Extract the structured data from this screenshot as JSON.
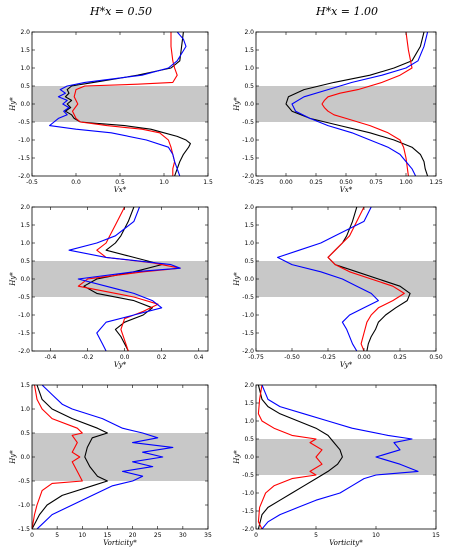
{
  "column_titles": [
    "H*x = 0.50",
    "H*x = 1.00"
  ],
  "colors": {
    "black": "#000000",
    "red": "#ff0000",
    "blue": "#0000ff",
    "band": "#c8c8c8"
  },
  "chart_data": [
    {
      "type": "line",
      "panel": "row1-col1",
      "xlabel": "Vx*",
      "ylabel": "Hy*",
      "xlim": [
        -0.5,
        1.5
      ],
      "ylim": [
        -2.0,
        2.0
      ],
      "xticks": [
        "-0.5",
        "0.0",
        "0.5",
        "1.0",
        "1.5"
      ],
      "yticks": [
        "-2.0",
        "-1.5",
        "-1.0",
        "-0.5",
        "0.0",
        "0.5",
        "1.0",
        "1.5",
        "2.0"
      ],
      "shaded_band_y": [
        -0.5,
        0.5
      ],
      "series": [
        {
          "color": "black",
          "y": [
            2.0,
            1.6,
            1.2,
            1.0,
            0.8,
            0.6,
            0.5,
            0.4,
            0.3,
            0.2,
            0.1,
            0.0,
            -0.1,
            -0.2,
            -0.3,
            -0.4,
            -0.5,
            -0.6,
            -0.7,
            -0.8,
            -0.9,
            -1.0,
            -1.1,
            -1.2,
            -1.3,
            -1.4,
            -1.6,
            -1.8,
            -2.0
          ],
          "x": [
            1.22,
            1.2,
            1.18,
            1.08,
            0.7,
            0.2,
            -0.05,
            -0.1,
            -0.08,
            -0.12,
            -0.05,
            -0.1,
            -0.06,
            -0.12,
            -0.05,
            -0.02,
            0.05,
            0.55,
            0.85,
            1.0,
            1.15,
            1.25,
            1.3,
            1.28,
            1.25,
            1.22,
            1.18,
            1.15,
            1.12
          ]
        },
        {
          "color": "red",
          "y": [
            2.0,
            1.6,
            1.2,
            1.0,
            0.8,
            0.6,
            0.55,
            0.5,
            0.4,
            0.2,
            0.0,
            -0.2,
            -0.4,
            -0.5,
            -0.6,
            -0.7,
            -0.8,
            -1.0,
            -1.2,
            -1.4,
            -1.6,
            -1.8,
            -2.0
          ],
          "x": [
            1.08,
            1.08,
            1.1,
            1.12,
            1.15,
            1.1,
            0.7,
            0.1,
            0.0,
            -0.02,
            0.02,
            -0.04,
            0.0,
            0.05,
            0.35,
            0.75,
            0.95,
            1.05,
            1.08,
            1.1,
            1.12,
            1.1,
            1.1
          ]
        },
        {
          "color": "blue",
          "y": [
            2.0,
            1.8,
            1.6,
            1.4,
            1.2,
            1.0,
            0.8,
            0.6,
            0.5,
            0.4,
            0.3,
            0.2,
            0.1,
            0.0,
            -0.1,
            -0.2,
            -0.3,
            -0.4,
            -0.5,
            -0.6,
            -0.7,
            -0.8,
            -1.0,
            -1.2,
            -1.4,
            -1.6,
            -1.8,
            -2.0
          ],
          "x": [
            1.15,
            1.22,
            1.25,
            1.2,
            1.15,
            1.05,
            0.75,
            0.1,
            -0.1,
            -0.18,
            -0.12,
            -0.2,
            -0.1,
            -0.15,
            -0.08,
            -0.14,
            -0.1,
            -0.2,
            -0.25,
            -0.3,
            0.0,
            0.4,
            0.8,
            1.05,
            1.1,
            1.12,
            1.15,
            1.18
          ]
        }
      ]
    },
    {
      "type": "line",
      "panel": "row1-col2",
      "xlabel": "Vx*",
      "ylabel": "Hy*",
      "xlim": [
        -0.25,
        1.25
      ],
      "ylim": [
        -2.0,
        2.0
      ],
      "xticks": [
        "-0.25",
        "0.00",
        "0.25",
        "0.50",
        "0.75",
        "1.00",
        "1.25"
      ],
      "yticks": [
        "-2.0",
        "-1.5",
        "-1.0",
        "-0.5",
        "0.0",
        "0.5",
        "1.0",
        "1.5",
        "2.0"
      ],
      "shaded_band_y": [
        -0.5,
        0.5
      ],
      "series": [
        {
          "color": "black",
          "y": [
            2.0,
            1.6,
            1.2,
            1.0,
            0.8,
            0.6,
            0.4,
            0.2,
            0.0,
            -0.2,
            -0.4,
            -0.6,
            -0.8,
            -1.0,
            -1.2,
            -1.4,
            -1.6,
            -1.8,
            -2.0
          ],
          "x": [
            1.15,
            1.12,
            1.05,
            0.9,
            0.7,
            0.4,
            0.15,
            0.02,
            0.0,
            0.05,
            0.2,
            0.45,
            0.7,
            0.9,
            1.05,
            1.12,
            1.15,
            1.16,
            1.18
          ]
        },
        {
          "color": "red",
          "y": [
            2.0,
            1.5,
            1.0,
            0.8,
            0.6,
            0.4,
            0.3,
            0.2,
            0.1,
            0.0,
            -0.1,
            -0.2,
            -0.3,
            -0.4,
            -0.5,
            -0.6,
            -0.8,
            -1.0,
            -1.2,
            -1.5,
            -2.0
          ],
          "x": [
            1.0,
            1.02,
            1.05,
            0.95,
            0.8,
            0.6,
            0.45,
            0.35,
            0.32,
            0.3,
            0.32,
            0.35,
            0.4,
            0.5,
            0.6,
            0.7,
            0.85,
            0.95,
            0.98,
            1.0,
            1.02
          ]
        },
        {
          "color": "blue",
          "y": [
            2.0,
            1.6,
            1.2,
            1.0,
            0.8,
            0.6,
            0.4,
            0.2,
            0.0,
            -0.2,
            -0.4,
            -0.6,
            -0.8,
            -1.0,
            -1.2,
            -1.4,
            -1.6,
            -1.8,
            -2.0
          ],
          "x": [
            1.18,
            1.15,
            1.1,
            1.0,
            0.8,
            0.55,
            0.35,
            0.15,
            0.05,
            0.08,
            0.2,
            0.35,
            0.55,
            0.7,
            0.85,
            0.95,
            1.0,
            1.05,
            1.08
          ]
        }
      ]
    },
    {
      "type": "line",
      "panel": "row2-col1",
      "xlabel": "Vy*",
      "ylabel": "Hy*",
      "xlim": [
        -0.5,
        0.45
      ],
      "ylim": [
        -2.0,
        2.0
      ],
      "xticks": [
        "-0.4",
        "-0.2",
        "0.0",
        "0.2",
        "0.4"
      ],
      "yticks": [
        "-2.0",
        "-1.5",
        "-1.0",
        "-0.5",
        "0.0",
        "0.5",
        "1.0",
        "1.5",
        "2.0"
      ],
      "shaded_band_y": [
        -0.5,
        0.5
      ],
      "series": [
        {
          "color": "black",
          "y": [
            2.0,
            1.6,
            1.2,
            1.0,
            0.8,
            0.6,
            0.4,
            0.2,
            0.0,
            -0.2,
            -0.4,
            -0.6,
            -0.8,
            -1.0,
            -1.2,
            -1.4,
            -1.6,
            -1.8,
            -2.0
          ],
          "x": [
            0.05,
            0.02,
            -0.02,
            -0.05,
            -0.1,
            0.05,
            0.2,
            0.05,
            -0.15,
            -0.22,
            -0.15,
            0.05,
            0.15,
            0.1,
            0.0,
            -0.05,
            -0.02,
            0.0,
            0.02
          ]
        },
        {
          "color": "red",
          "y": [
            2.0,
            1.5,
            1.2,
            1.0,
            0.8,
            0.6,
            0.45,
            0.3,
            0.2,
            0.0,
            -0.2,
            -0.35,
            -0.5,
            -0.7,
            -0.9,
            -1.1,
            -1.4,
            -1.7,
            -2.0
          ],
          "x": [
            0.0,
            -0.05,
            -0.08,
            -0.1,
            -0.15,
            -0.1,
            0.15,
            0.3,
            0.1,
            -0.2,
            -0.25,
            -0.1,
            0.05,
            0.18,
            0.1,
            0.0,
            -0.02,
            0.0,
            0.02
          ]
        },
        {
          "color": "blue",
          "y": [
            2.0,
            1.6,
            1.2,
            1.0,
            0.8,
            0.6,
            0.4,
            0.3,
            0.2,
            0.0,
            -0.2,
            -0.4,
            -0.6,
            -0.8,
            -1.0,
            -1.2,
            -1.5,
            -1.8,
            -2.0
          ],
          "x": [
            0.08,
            0.05,
            -0.05,
            -0.15,
            -0.3,
            -0.1,
            0.25,
            0.3,
            0.05,
            -0.25,
            -0.1,
            0.05,
            0.15,
            0.2,
            0.05,
            -0.1,
            -0.15,
            -0.12,
            -0.1
          ]
        }
      ]
    },
    {
      "type": "line",
      "panel": "row2-col2",
      "xlabel": "Vy*",
      "ylabel": "Hy*",
      "xlim": [
        -0.75,
        0.5
      ],
      "ylim": [
        -2.0,
        2.0
      ],
      "xticks": [
        "-0.75",
        "-0.50",
        "-0.25",
        "0.00",
        "0.25",
        "0.50"
      ],
      "yticks": [
        "-2.0",
        "-1.5",
        "-1.0",
        "-0.5",
        "0.0",
        "0.5",
        "1.0",
        "1.5",
        "2.0"
      ],
      "shaded_band_y": [
        -0.5,
        0.5
      ],
      "series": [
        {
          "color": "black",
          "y": [
            2.0,
            1.6,
            1.2,
            1.0,
            0.8,
            0.6,
            0.4,
            0.2,
            0.0,
            -0.2,
            -0.4,
            -0.6,
            -0.8,
            -1.0,
            -1.2,
            -1.4,
            -1.6,
            -1.8,
            -2.0
          ],
          "x": [
            -0.05,
            -0.08,
            -0.12,
            -0.15,
            -0.2,
            -0.25,
            -0.2,
            -0.05,
            0.1,
            0.25,
            0.32,
            0.3,
            0.22,
            0.15,
            0.1,
            0.08,
            0.05,
            0.03,
            0.02
          ]
        },
        {
          "color": "red",
          "y": [
            2.0,
            1.6,
            1.2,
            1.0,
            0.8,
            0.6,
            0.4,
            0.2,
            0.0,
            -0.2,
            -0.4,
            -0.6,
            -0.8,
            -1.0,
            -1.2,
            -1.5,
            -1.8,
            -2.0
          ],
          "x": [
            0.0,
            -0.05,
            -0.1,
            -0.15,
            -0.2,
            -0.25,
            -0.2,
            -0.1,
            0.05,
            0.2,
            0.28,
            0.2,
            0.1,
            0.05,
            0.02,
            0.0,
            -0.02,
            0.0
          ]
        },
        {
          "color": "blue",
          "y": [
            2.0,
            1.6,
            1.2,
            1.0,
            0.8,
            0.6,
            0.4,
            0.2,
            0.0,
            -0.2,
            -0.4,
            -0.6,
            -0.8,
            -1.0,
            -1.2,
            -1.4,
            -1.6,
            -1.8,
            -2.0
          ],
          "x": [
            0.05,
            0.0,
            -0.2,
            -0.3,
            -0.45,
            -0.6,
            -0.5,
            -0.3,
            -0.15,
            -0.05,
            0.05,
            0.1,
            0.0,
            -0.1,
            -0.15,
            -0.12,
            -0.1,
            -0.08,
            -0.05
          ]
        }
      ]
    },
    {
      "type": "line",
      "panel": "row3-col1",
      "xlabel": "Vorticity*",
      "ylabel": "Hy*",
      "xlim": [
        0,
        35
      ],
      "ylim": [
        -1.5,
        1.5
      ],
      "xticks": [
        "0",
        "5",
        "10",
        "15",
        "20",
        "25",
        "30",
        "35"
      ],
      "yticks": [
        "-1.5",
        "-1.0",
        "-0.5",
        "0.0",
        "0.5",
        "1.0",
        "1.5"
      ],
      "shaded_band_y": [
        -0.5,
        0.5
      ],
      "series": [
        {
          "color": "black",
          "y": [
            1.5,
            1.2,
            1.0,
            0.8,
            0.6,
            0.5,
            0.4,
            0.2,
            0.0,
            -0.2,
            -0.4,
            -0.5,
            -0.6,
            -0.8,
            -1.0,
            -1.2,
            -1.4,
            -1.5
          ],
          "x": [
            1.0,
            2.0,
            4.0,
            8.0,
            13.0,
            15.0,
            12.0,
            11.0,
            10.5,
            11.5,
            13.0,
            15.0,
            12.0,
            6.0,
            3.0,
            1.5,
            0.5,
            0.0
          ]
        },
        {
          "color": "red",
          "y": [
            1.5,
            1.2,
            1.0,
            0.8,
            0.6,
            0.5,
            0.45,
            0.3,
            0.1,
            0.0,
            -0.1,
            -0.3,
            -0.5,
            -0.55,
            -0.7,
            -1.0,
            -1.2,
            -1.5
          ],
          "x": [
            0.5,
            1.0,
            2.0,
            4.0,
            9.0,
            10.0,
            8.0,
            9.0,
            8.0,
            9.5,
            8.0,
            9.0,
            10.0,
            4.0,
            2.0,
            1.0,
            0.5,
            0.0
          ]
        },
        {
          "color": "blue",
          "y": [
            1.5,
            1.3,
            1.1,
            1.0,
            0.8,
            0.6,
            0.5,
            0.4,
            0.3,
            0.2,
            0.1,
            0.0,
            -0.1,
            -0.2,
            -0.3,
            -0.4,
            -0.5,
            -0.6,
            -0.8,
            -1.0,
            -1.2,
            -1.4,
            -1.5
          ],
          "x": [
            2.0,
            4.0,
            6.0,
            8.0,
            14.0,
            18.0,
            22.0,
            25.0,
            20.0,
            28.0,
            22.0,
            26.0,
            20.0,
            24.0,
            18.0,
            22.0,
            20.0,
            16.0,
            12.0,
            8.0,
            4.0,
            2.0,
            1.0
          ]
        }
      ]
    },
    {
      "type": "line",
      "panel": "row3-col2",
      "xlabel": "Vorticity*",
      "ylabel": "Hy*",
      "xlim": [
        0,
        15
      ],
      "ylim": [
        -2.0,
        2.0
      ],
      "xticks": [
        "0",
        "5",
        "10",
        "15"
      ],
      "yticks": [
        "-2.0",
        "-1.5",
        "-1.0",
        "-0.5",
        "0.0",
        "0.5",
        "1.0",
        "1.5",
        "2.0"
      ],
      "shaded_band_y": [
        -0.5,
        0.5
      ],
      "series": [
        {
          "color": "black",
          "y": [
            2.0,
            1.6,
            1.4,
            1.2,
            1.0,
            0.8,
            0.6,
            0.4,
            0.2,
            0.0,
            -0.2,
            -0.4,
            -0.6,
            -0.8,
            -1.0,
            -1.2,
            -1.4,
            -1.6,
            -2.0
          ],
          "x": [
            0.2,
            0.5,
            1.0,
            2.0,
            3.5,
            5.0,
            6.0,
            6.5,
            7.0,
            7.2,
            6.8,
            6.0,
            5.0,
            4.0,
            3.0,
            2.0,
            1.0,
            0.5,
            0.2
          ]
        },
        {
          "color": "red",
          "y": [
            2.0,
            1.6,
            1.2,
            1.0,
            0.8,
            0.6,
            0.5,
            0.4,
            0.2,
            0.0,
            -0.2,
            -0.4,
            -0.5,
            -0.6,
            -0.8,
            -1.0,
            -1.4,
            -1.8,
            -2.0
          ],
          "x": [
            0.5,
            0.3,
            0.2,
            0.5,
            1.5,
            3.0,
            5.0,
            4.5,
            5.5,
            5.0,
            5.5,
            4.5,
            5.0,
            3.0,
            1.5,
            0.8,
            0.3,
            0.2,
            0.5
          ]
        },
        {
          "color": "blue",
          "y": [
            2.0,
            1.6,
            1.4,
            1.2,
            1.0,
            0.8,
            0.6,
            0.5,
            0.4,
            0.2,
            0.0,
            -0.2,
            -0.4,
            -0.5,
            -0.6,
            -0.8,
            -1.0,
            -1.2,
            -1.4,
            -1.6,
            -1.8,
            -2.0
          ],
          "x": [
            0.5,
            1.0,
            2.0,
            4.0,
            6.0,
            8.0,
            11.0,
            13.0,
            11.5,
            12.0,
            10.0,
            12.0,
            13.5,
            10.0,
            9.0,
            8.0,
            7.0,
            5.0,
            3.5,
            2.0,
            1.0,
            0.5
          ]
        }
      ]
    }
  ]
}
